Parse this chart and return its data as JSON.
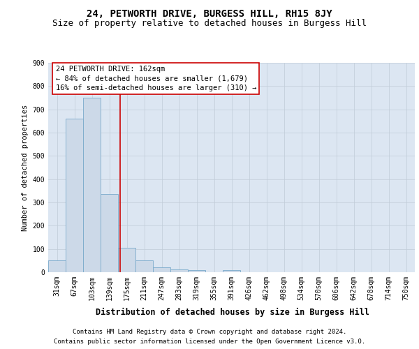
{
  "title1": "24, PETWORTH DRIVE, BURGESS HILL, RH15 8JY",
  "title2": "Size of property relative to detached houses in Burgess Hill",
  "xlabel": "Distribution of detached houses by size in Burgess Hill",
  "ylabel": "Number of detached properties",
  "bar_color": "#ccd9e8",
  "bar_edge_color": "#7aaacb",
  "background_color": "#dce6f2",
  "categories": [
    "31sqm",
    "67sqm",
    "103sqm",
    "139sqm",
    "175sqm",
    "211sqm",
    "247sqm",
    "283sqm",
    "319sqm",
    "355sqm",
    "391sqm",
    "426sqm",
    "462sqm",
    "498sqm",
    "534sqm",
    "570sqm",
    "606sqm",
    "642sqm",
    "678sqm",
    "714sqm",
    "750sqm"
  ],
  "values": [
    50,
    660,
    750,
    335,
    105,
    50,
    22,
    12,
    8,
    0,
    10,
    0,
    0,
    0,
    0,
    0,
    0,
    0,
    0,
    0,
    0
  ],
  "annotation_line1": "24 PETWORTH DRIVE: 162sqm",
  "annotation_line2": "← 84% of detached houses are smaller (1,679)",
  "annotation_line3": "16% of semi-detached houses are larger (310) →",
  "vline_color": "#cc0000",
  "annotation_box_edgecolor": "#cc0000",
  "footer1": "Contains HM Land Registry data © Crown copyright and database right 2024.",
  "footer2": "Contains public sector information licensed under the Open Government Licence v3.0.",
  "ylim": [
    0,
    900
  ],
  "yticks": [
    0,
    100,
    200,
    300,
    400,
    500,
    600,
    700,
    800,
    900
  ],
  "grid_color": "#c0ccd8",
  "title1_fontsize": 10,
  "title2_fontsize": 9,
  "xlabel_fontsize": 8.5,
  "ylabel_fontsize": 7.5,
  "tick_fontsize": 7,
  "footer_fontsize": 6.5,
  "annotation_fontsize": 7.5
}
